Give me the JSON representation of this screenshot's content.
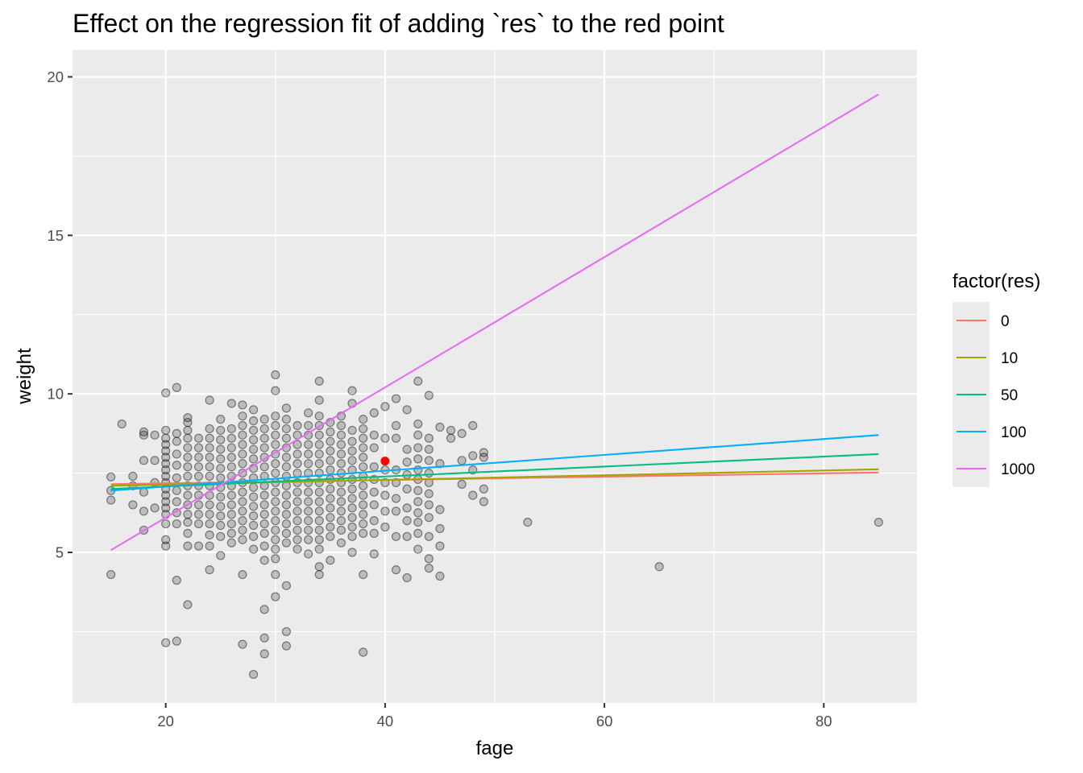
{
  "chart_data": {
    "type": "scatter",
    "title": "Effect on the regression fit of adding `res` to the red point",
    "xlabel": "fage",
    "ylabel": "weight",
    "xlim": [
      11.5,
      88.5
    ],
    "ylim": [
      0.25,
      20.85
    ],
    "x_ticks": [
      20,
      40,
      60,
      80
    ],
    "x_tick_labels": [
      "20",
      "40",
      "60",
      "80"
    ],
    "y_ticks": [
      5,
      10,
      15,
      20
    ],
    "y_tick_labels": [
      "5",
      "10",
      "15",
      "20"
    ],
    "grid": true,
    "legend": {
      "title": "factor(res)",
      "position": "right",
      "entries": [
        {
          "label": "0",
          "color": "#F8766D"
        },
        {
          "label": "10",
          "color": "#A3A500"
        },
        {
          "label": "50",
          "color": "#00BF7D"
        },
        {
          "label": "100",
          "color": "#00B0F6"
        },
        {
          "label": "1000",
          "color": "#E76BF3"
        }
      ]
    },
    "red_point": {
      "x": 40,
      "y": 7.88,
      "color": "#FF0000"
    },
    "series": [
      {
        "name": "0",
        "color": "#F8766D",
        "x": [
          15,
          85
        ],
        "y": [
          7.15,
          7.52
        ]
      },
      {
        "name": "10",
        "color": "#A3A500",
        "x": [
          15,
          85
        ],
        "y": [
          7.1,
          7.62
        ]
      },
      {
        "name": "50",
        "color": "#00BF7D",
        "x": [
          15,
          85
        ],
        "y": [
          7.0,
          8.1
        ]
      },
      {
        "name": "100",
        "color": "#00B0F6",
        "x": [
          15,
          85
        ],
        "y": [
          6.95,
          8.7
        ]
      },
      {
        "name": "1000",
        "color": "#E76BF3",
        "x": [
          15,
          85
        ],
        "y": [
          5.07,
          19.45
        ]
      }
    ],
    "points": [
      [
        15,
        7.38
      ],
      [
        15,
        6.95
      ],
      [
        15,
        6.65
      ],
      [
        15,
        4.3
      ],
      [
        16,
        9.05
      ],
      [
        17,
        7.4
      ],
      [
        17,
        6.5
      ],
      [
        17,
        7.1
      ],
      [
        18,
        8.8
      ],
      [
        18,
        8.7
      ],
      [
        18,
        7.9
      ],
      [
        18,
        6.9
      ],
      [
        18,
        6.3
      ],
      [
        18,
        5.7
      ],
      [
        19,
        8.7
      ],
      [
        19,
        7.9
      ],
      [
        19,
        7.2
      ],
      [
        19,
        6.4
      ],
      [
        20,
        10.03
      ],
      [
        20,
        8.85
      ],
      [
        20,
        8.6
      ],
      [
        20,
        8.4
      ],
      [
        20,
        8.2
      ],
      [
        20,
        8.0
      ],
      [
        20,
        7.8
      ],
      [
        20,
        7.6
      ],
      [
        20,
        7.4
      ],
      [
        20,
        7.2
      ],
      [
        20,
        7.0
      ],
      [
        20,
        6.8
      ],
      [
        20,
        6.6
      ],
      [
        20,
        6.4
      ],
      [
        20,
        6.2
      ],
      [
        20,
        5.9
      ],
      [
        20,
        5.4
      ],
      [
        20,
        5.2
      ],
      [
        20,
        2.15
      ],
      [
        21,
        10.2
      ],
      [
        21,
        8.75
      ],
      [
        21,
        8.5
      ],
      [
        21,
        8.1
      ],
      [
        21,
        7.75
      ],
      [
        21,
        7.35
      ],
      [
        21,
        6.95
      ],
      [
        21,
        6.6
      ],
      [
        21,
        6.25
      ],
      [
        21,
        5.9
      ],
      [
        21,
        4.12
      ],
      [
        21,
        2.2
      ],
      [
        22,
        9.25
      ],
      [
        22,
        9.1
      ],
      [
        22,
        8.85
      ],
      [
        22,
        8.6
      ],
      [
        22,
        8.3
      ],
      [
        22,
        8.0
      ],
      [
        22,
        7.7
      ],
      [
        22,
        7.4
      ],
      [
        22,
        7.1
      ],
      [
        22,
        6.8
      ],
      [
        22,
        6.5
      ],
      [
        22,
        6.2
      ],
      [
        22,
        5.95
      ],
      [
        22,
        5.6
      ],
      [
        22,
        5.2
      ],
      [
        22,
        3.35
      ],
      [
        23,
        8.6
      ],
      [
        23,
        8.3
      ],
      [
        23,
        8.0
      ],
      [
        23,
        7.7
      ],
      [
        23,
        7.4
      ],
      [
        23,
        7.1
      ],
      [
        23,
        6.8
      ],
      [
        23,
        6.5
      ],
      [
        23,
        6.2
      ],
      [
        23,
        5.9
      ],
      [
        23,
        5.2
      ],
      [
        24,
        9.8
      ],
      [
        24,
        8.9
      ],
      [
        24,
        8.6
      ],
      [
        24,
        8.3
      ],
      [
        24,
        8.0
      ],
      [
        24,
        7.7
      ],
      [
        24,
        7.4
      ],
      [
        24,
        7.1
      ],
      [
        24,
        6.8
      ],
      [
        24,
        6.5
      ],
      [
        24,
        6.2
      ],
      [
        24,
        5.9
      ],
      [
        24,
        5.55
      ],
      [
        24,
        5.2
      ],
      [
        24,
        4.45
      ],
      [
        25,
        9.2
      ],
      [
        25,
        8.85
      ],
      [
        25,
        8.55
      ],
      [
        25,
        8.25
      ],
      [
        25,
        7.95
      ],
      [
        25,
        7.65
      ],
      [
        25,
        7.35
      ],
      [
        25,
        7.05
      ],
      [
        25,
        6.75
      ],
      [
        25,
        6.45
      ],
      [
        25,
        6.15
      ],
      [
        25,
        5.85
      ],
      [
        25,
        5.5
      ],
      [
        25,
        4.9
      ],
      [
        26,
        9.7
      ],
      [
        26,
        8.9
      ],
      [
        26,
        8.6
      ],
      [
        26,
        8.3
      ],
      [
        26,
        8.0
      ],
      [
        26,
        7.7
      ],
      [
        26,
        7.4
      ],
      [
        26,
        7.1
      ],
      [
        26,
        6.8
      ],
      [
        26,
        6.5
      ],
      [
        26,
        6.2
      ],
      [
        26,
        5.9
      ],
      [
        26,
        5.6
      ],
      [
        26,
        5.3
      ],
      [
        27,
        9.65
      ],
      [
        27,
        9.3
      ],
      [
        27,
        9.0
      ],
      [
        27,
        8.7
      ],
      [
        27,
        8.4
      ],
      [
        27,
        8.1
      ],
      [
        27,
        7.8
      ],
      [
        27,
        7.5
      ],
      [
        27,
        7.2
      ],
      [
        27,
        6.9
      ],
      [
        27,
        6.6
      ],
      [
        27,
        6.3
      ],
      [
        27,
        6.0
      ],
      [
        27,
        5.7
      ],
      [
        27,
        5.4
      ],
      [
        27,
        4.3
      ],
      [
        27,
        2.1
      ],
      [
        28,
        9.5
      ],
      [
        28,
        9.15
      ],
      [
        28,
        8.85
      ],
      [
        28,
        8.55
      ],
      [
        28,
        8.25
      ],
      [
        28,
        7.95
      ],
      [
        28,
        7.65
      ],
      [
        28,
        7.35
      ],
      [
        28,
        7.05
      ],
      [
        28,
        6.75
      ],
      [
        28,
        6.45
      ],
      [
        28,
        6.15
      ],
      [
        28,
        5.85
      ],
      [
        28,
        5.5
      ],
      [
        28,
        5.1
      ],
      [
        28,
        1.15
      ],
      [
        29,
        9.2
      ],
      [
        29,
        8.9
      ],
      [
        29,
        8.6
      ],
      [
        29,
        8.3
      ],
      [
        29,
        8.0
      ],
      [
        29,
        7.7
      ],
      [
        29,
        7.4
      ],
      [
        29,
        7.1
      ],
      [
        29,
        6.8
      ],
      [
        29,
        6.5
      ],
      [
        29,
        6.2
      ],
      [
        29,
        5.9
      ],
      [
        29,
        5.6
      ],
      [
        29,
        5.2
      ],
      [
        29,
        4.75
      ],
      [
        29,
        3.2
      ],
      [
        29,
        2.3
      ],
      [
        29,
        1.8
      ],
      [
        30,
        10.6
      ],
      [
        30,
        10.1
      ],
      [
        30,
        9.3
      ],
      [
        30,
        9.0
      ],
      [
        30,
        8.7
      ],
      [
        30,
        8.4
      ],
      [
        30,
        8.1
      ],
      [
        30,
        7.8
      ],
      [
        30,
        7.5
      ],
      [
        30,
        7.2
      ],
      [
        30,
        6.9
      ],
      [
        30,
        6.6
      ],
      [
        30,
        6.3
      ],
      [
        30,
        6.0
      ],
      [
        30,
        5.7
      ],
      [
        30,
        5.4
      ],
      [
        30,
        5.1
      ],
      [
        30,
        4.8
      ],
      [
        30,
        4.3
      ],
      [
        30,
        3.6
      ],
      [
        31,
        9.55
      ],
      [
        31,
        9.2
      ],
      [
        31,
        8.9
      ],
      [
        31,
        8.6
      ],
      [
        31,
        8.3
      ],
      [
        31,
        8.0
      ],
      [
        31,
        7.7
      ],
      [
        31,
        7.4
      ],
      [
        31,
        7.1
      ],
      [
        31,
        6.8
      ],
      [
        31,
        6.5
      ],
      [
        31,
        6.2
      ],
      [
        31,
        5.9
      ],
      [
        31,
        5.6
      ],
      [
        31,
        5.3
      ],
      [
        31,
        3.95
      ],
      [
        31,
        2.5
      ],
      [
        31,
        2.05
      ],
      [
        32,
        9.0
      ],
      [
        32,
        8.7
      ],
      [
        32,
        8.4
      ],
      [
        32,
        8.1
      ],
      [
        32,
        7.8
      ],
      [
        32,
        7.5
      ],
      [
        32,
        7.2
      ],
      [
        32,
        6.9
      ],
      [
        32,
        6.6
      ],
      [
        32,
        6.3
      ],
      [
        32,
        6.0
      ],
      [
        32,
        5.7
      ],
      [
        32,
        5.4
      ],
      [
        32,
        5.1
      ],
      [
        33,
        9.4
      ],
      [
        33,
        9.0
      ],
      [
        33,
        8.7
      ],
      [
        33,
        8.4
      ],
      [
        33,
        8.1
      ],
      [
        33,
        7.8
      ],
      [
        33,
        7.5
      ],
      [
        33,
        7.2
      ],
      [
        33,
        6.9
      ],
      [
        33,
        6.6
      ],
      [
        33,
        6.3
      ],
      [
        33,
        6.0
      ],
      [
        33,
        5.7
      ],
      [
        33,
        5.4
      ],
      [
        33,
        4.95
      ],
      [
        34,
        10.4
      ],
      [
        34,
        9.8
      ],
      [
        34,
        9.3
      ],
      [
        34,
        9.0
      ],
      [
        34,
        8.7
      ],
      [
        34,
        8.4
      ],
      [
        34,
        8.1
      ],
      [
        34,
        7.8
      ],
      [
        34,
        7.5
      ],
      [
        34,
        7.2
      ],
      [
        34,
        6.9
      ],
      [
        34,
        6.6
      ],
      [
        34,
        6.3
      ],
      [
        34,
        6.0
      ],
      [
        34,
        5.7
      ],
      [
        34,
        5.4
      ],
      [
        34,
        5.1
      ],
      [
        34,
        4.55
      ],
      [
        34,
        4.3
      ],
      [
        35,
        9.1
      ],
      [
        35,
        8.8
      ],
      [
        35,
        8.5
      ],
      [
        35,
        8.2
      ],
      [
        35,
        7.9
      ],
      [
        35,
        7.6
      ],
      [
        35,
        7.3
      ],
      [
        35,
        7.0
      ],
      [
        35,
        6.7
      ],
      [
        35,
        6.4
      ],
      [
        35,
        6.1
      ],
      [
        35,
        5.8
      ],
      [
        35,
        5.5
      ],
      [
        35,
        4.75
      ],
      [
        36,
        9.3
      ],
      [
        36,
        9.0
      ],
      [
        36,
        8.7
      ],
      [
        36,
        8.4
      ],
      [
        36,
        8.1
      ],
      [
        36,
        7.8
      ],
      [
        36,
        7.5
      ],
      [
        36,
        7.2
      ],
      [
        36,
        6.9
      ],
      [
        36,
        6.6
      ],
      [
        36,
        6.3
      ],
      [
        36,
        6.0
      ],
      [
        36,
        5.7
      ],
      [
        36,
        5.3
      ],
      [
        37,
        10.1
      ],
      [
        37,
        9.7
      ],
      [
        37,
        8.85
      ],
      [
        37,
        8.5
      ],
      [
        37,
        8.2
      ],
      [
        37,
        7.9
      ],
      [
        37,
        7.6
      ],
      [
        37,
        7.3
      ],
      [
        37,
        7.0
      ],
      [
        37,
        6.7
      ],
      [
        37,
        6.4
      ],
      [
        37,
        6.1
      ],
      [
        37,
        5.8
      ],
      [
        37,
        5.5
      ],
      [
        37,
        5.0
      ],
      [
        38,
        9.2
      ],
      [
        38,
        8.9
      ],
      [
        38,
        8.6
      ],
      [
        38,
        8.3
      ],
      [
        38,
        8.0
      ],
      [
        38,
        7.7
      ],
      [
        38,
        7.4
      ],
      [
        38,
        7.1
      ],
      [
        38,
        6.8
      ],
      [
        38,
        6.5
      ],
      [
        38,
        6.2
      ],
      [
        38,
        5.9
      ],
      [
        38,
        5.6
      ],
      [
        38,
        4.3
      ],
      [
        38,
        1.85
      ],
      [
        39,
        9.4
      ],
      [
        39,
        8.7
      ],
      [
        39,
        8.3
      ],
      [
        39,
        7.7
      ],
      [
        39,
        7.3
      ],
      [
        39,
        6.9
      ],
      [
        39,
        6.5
      ],
      [
        39,
        6.0
      ],
      [
        39,
        5.6
      ],
      [
        39,
        4.95
      ],
      [
        40,
        9.6
      ],
      [
        40,
        8.6
      ],
      [
        40,
        7.6
      ],
      [
        40,
        7.2
      ],
      [
        40,
        6.8
      ],
      [
        40,
        6.3
      ],
      [
        40,
        5.8
      ],
      [
        41,
        9.85
      ],
      [
        41,
        9.0
      ],
      [
        41,
        8.6
      ],
      [
        41,
        7.6
      ],
      [
        41,
        7.2
      ],
      [
        41,
        6.7
      ],
      [
        41,
        6.3
      ],
      [
        41,
        5.5
      ],
      [
        41,
        4.45
      ],
      [
        42,
        9.5
      ],
      [
        42,
        8.25
      ],
      [
        42,
        7.85
      ],
      [
        42,
        7.45
      ],
      [
        42,
        7.0
      ],
      [
        42,
        6.4
      ],
      [
        42,
        6.0
      ],
      [
        42,
        5.5
      ],
      [
        42,
        4.2
      ],
      [
        43,
        10.4
      ],
      [
        43,
        9.05
      ],
      [
        43,
        8.7
      ],
      [
        43,
        8.3
      ],
      [
        43,
        7.95
      ],
      [
        43,
        7.6
      ],
      [
        43,
        7.3
      ],
      [
        43,
        6.95
      ],
      [
        43,
        6.6
      ],
      [
        43,
        6.25
      ],
      [
        43,
        5.95
      ],
      [
        43,
        5.6
      ],
      [
        43,
        5.1
      ],
      [
        44,
        9.95
      ],
      [
        44,
        8.6
      ],
      [
        44,
        8.25
      ],
      [
        44,
        7.9
      ],
      [
        44,
        7.5
      ],
      [
        44,
        7.2
      ],
      [
        44,
        6.85
      ],
      [
        44,
        6.5
      ],
      [
        44,
        6.1
      ],
      [
        44,
        5.5
      ],
      [
        44,
        4.8
      ],
      [
        44,
        4.5
      ],
      [
        45,
        8.95
      ],
      [
        45,
        7.8
      ],
      [
        45,
        6.35
      ],
      [
        45,
        5.75
      ],
      [
        45,
        5.2
      ],
      [
        45,
        4.25
      ],
      [
        46,
        8.85
      ],
      [
        46,
        8.6
      ],
      [
        47,
        8.75
      ],
      [
        47,
        7.9
      ],
      [
        47,
        7.15
      ],
      [
        48,
        9.0
      ],
      [
        48,
        8.05
      ],
      [
        48,
        7.6
      ],
      [
        48,
        6.8
      ],
      [
        49,
        8.15
      ],
      [
        49,
        8.0
      ],
      [
        49,
        7.0
      ],
      [
        49,
        6.6
      ],
      [
        53,
        5.95
      ],
      [
        65,
        4.55
      ],
      [
        85,
        5.95
      ]
    ]
  }
}
